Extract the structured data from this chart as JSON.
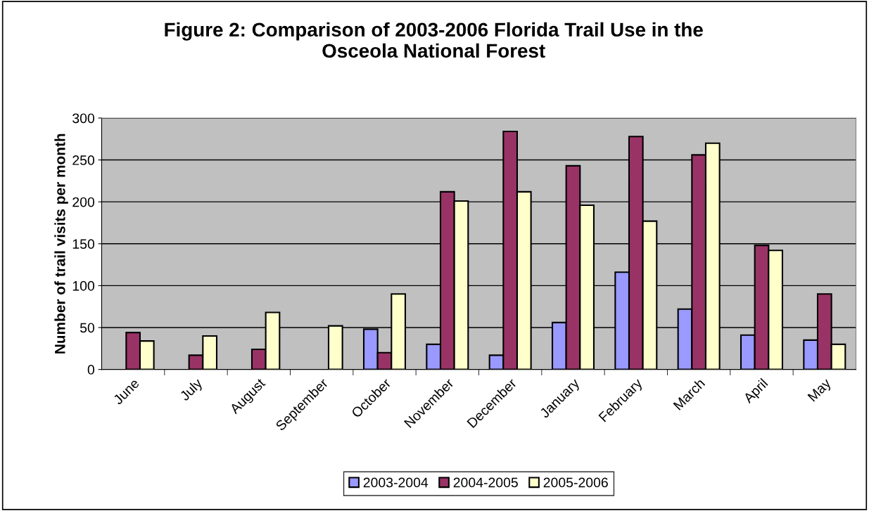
{
  "chart_data": {
    "type": "bar",
    "title": "Figure 2: Comparison of 2003-2006 Florida Trail Use in the\nOsceola National Forest",
    "ylabel": "Number of trail visits per month",
    "categories": [
      "June",
      "July",
      "August",
      "September",
      "October",
      "November",
      "December",
      "January",
      "February",
      "March",
      "April",
      "May"
    ],
    "series": [
      {
        "name": "2003-2004",
        "color": "#9999ff",
        "values": [
          null,
          null,
          null,
          null,
          48,
          30,
          17,
          56,
          116,
          72,
          41,
          35
        ]
      },
      {
        "name": "2004-2005",
        "color": "#993366",
        "values": [
          44,
          17,
          24,
          null,
          20,
          212,
          284,
          243,
          278,
          256,
          148,
          90
        ]
      },
      {
        "name": "2005-2006",
        "color": "#ffffcc",
        "values": [
          34,
          40,
          68,
          52,
          90,
          201,
          212,
          196,
          177,
          270,
          142,
          30
        ]
      }
    ],
    "ylim": [
      0,
      300
    ],
    "yticks": [
      0,
      50,
      100,
      150,
      200,
      250,
      300
    ],
    "grid": "y",
    "legend": "bottom"
  }
}
